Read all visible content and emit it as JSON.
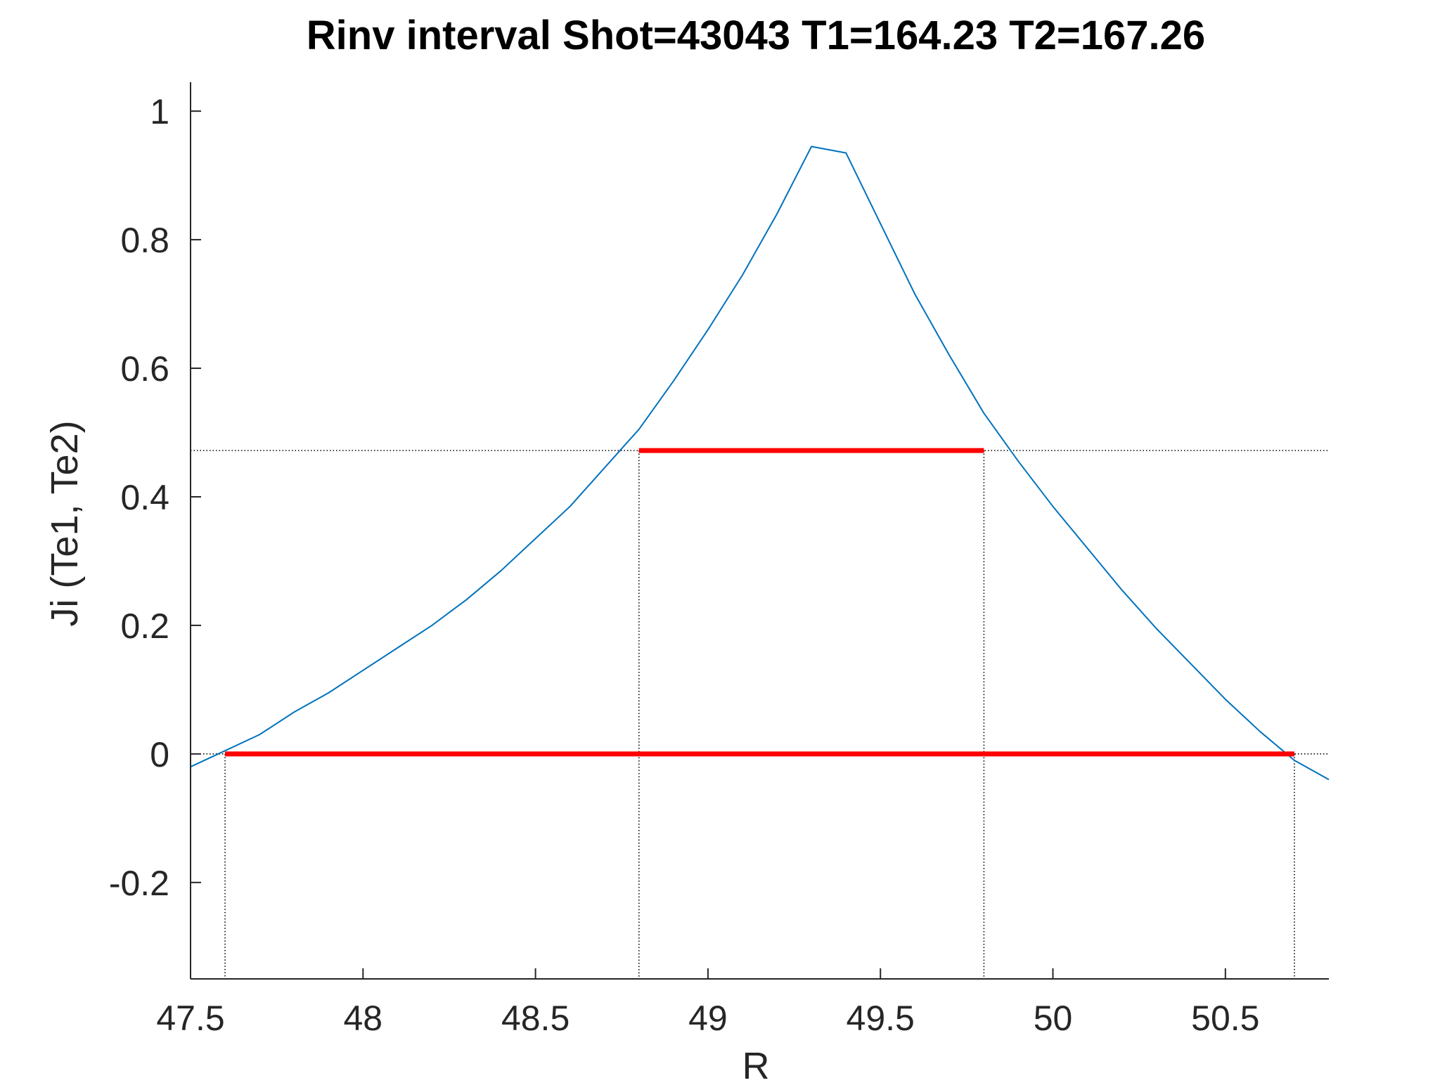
{
  "chart_data": {
    "type": "line",
    "title": "Rinv interval Shot=43043 T1=164.23 T2=167.26",
    "xlabel": "R",
    "ylabel": "Ji (Te1, Te2)",
    "xlim": [
      47.5,
      50.8
    ],
    "ylim": [
      -0.35,
      1.045
    ],
    "xticks": [
      47.5,
      48,
      48.5,
      49,
      49.5,
      50,
      50.5
    ],
    "xtick_labels": [
      "47.5",
      "48",
      "48.5",
      "49",
      "49.5",
      "50",
      "50.5"
    ],
    "yticks": [
      -0.2,
      0,
      0.2,
      0.4,
      0.6,
      0.8,
      1
    ],
    "ytick_labels": [
      "-0.2",
      "0",
      "0.2",
      "0.4",
      "0.6",
      "0.8",
      "1"
    ],
    "grid": false,
    "legend": "none",
    "colors": {
      "curve": "#0072bd",
      "interval": "#ff0000",
      "guides": "#000000",
      "axes": "#262626"
    },
    "series": [
      {
        "x": [
          47.5,
          47.6,
          47.7,
          47.8,
          47.9,
          48.0,
          48.1,
          48.2,
          48.3,
          48.4,
          48.5,
          48.6,
          48.7,
          48.8,
          48.9,
          49.0,
          49.1,
          49.2,
          49.3,
          49.4,
          49.5,
          49.6,
          49.7,
          49.8,
          49.9,
          50.0,
          50.1,
          50.2,
          50.3,
          50.4,
          50.5,
          50.6,
          50.7,
          50.8
        ],
        "values": [
          -0.02,
          0.005,
          0.03,
          0.065,
          0.095,
          0.13,
          0.165,
          0.2,
          0.24,
          0.285,
          0.335,
          0.385,
          0.445,
          0.505,
          0.58,
          0.66,
          0.745,
          0.84,
          0.945,
          0.935,
          0.825,
          0.715,
          0.62,
          0.53,
          0.455,
          0.385,
          0.32,
          0.255,
          0.195,
          0.14,
          0.085,
          0.035,
          -0.01,
          -0.04
        ]
      }
    ],
    "intervals": [
      {
        "x": [
          47.6,
          50.7
        ],
        "y": 0.0
      },
      {
        "x": [
          48.8,
          49.8
        ],
        "y": 0.472
      }
    ],
    "guide_lines": {
      "horizontal_y": [
        0.472,
        0.0
      ],
      "vertical_x": [
        47.6,
        48.8,
        49.8,
        50.7
      ]
    }
  }
}
